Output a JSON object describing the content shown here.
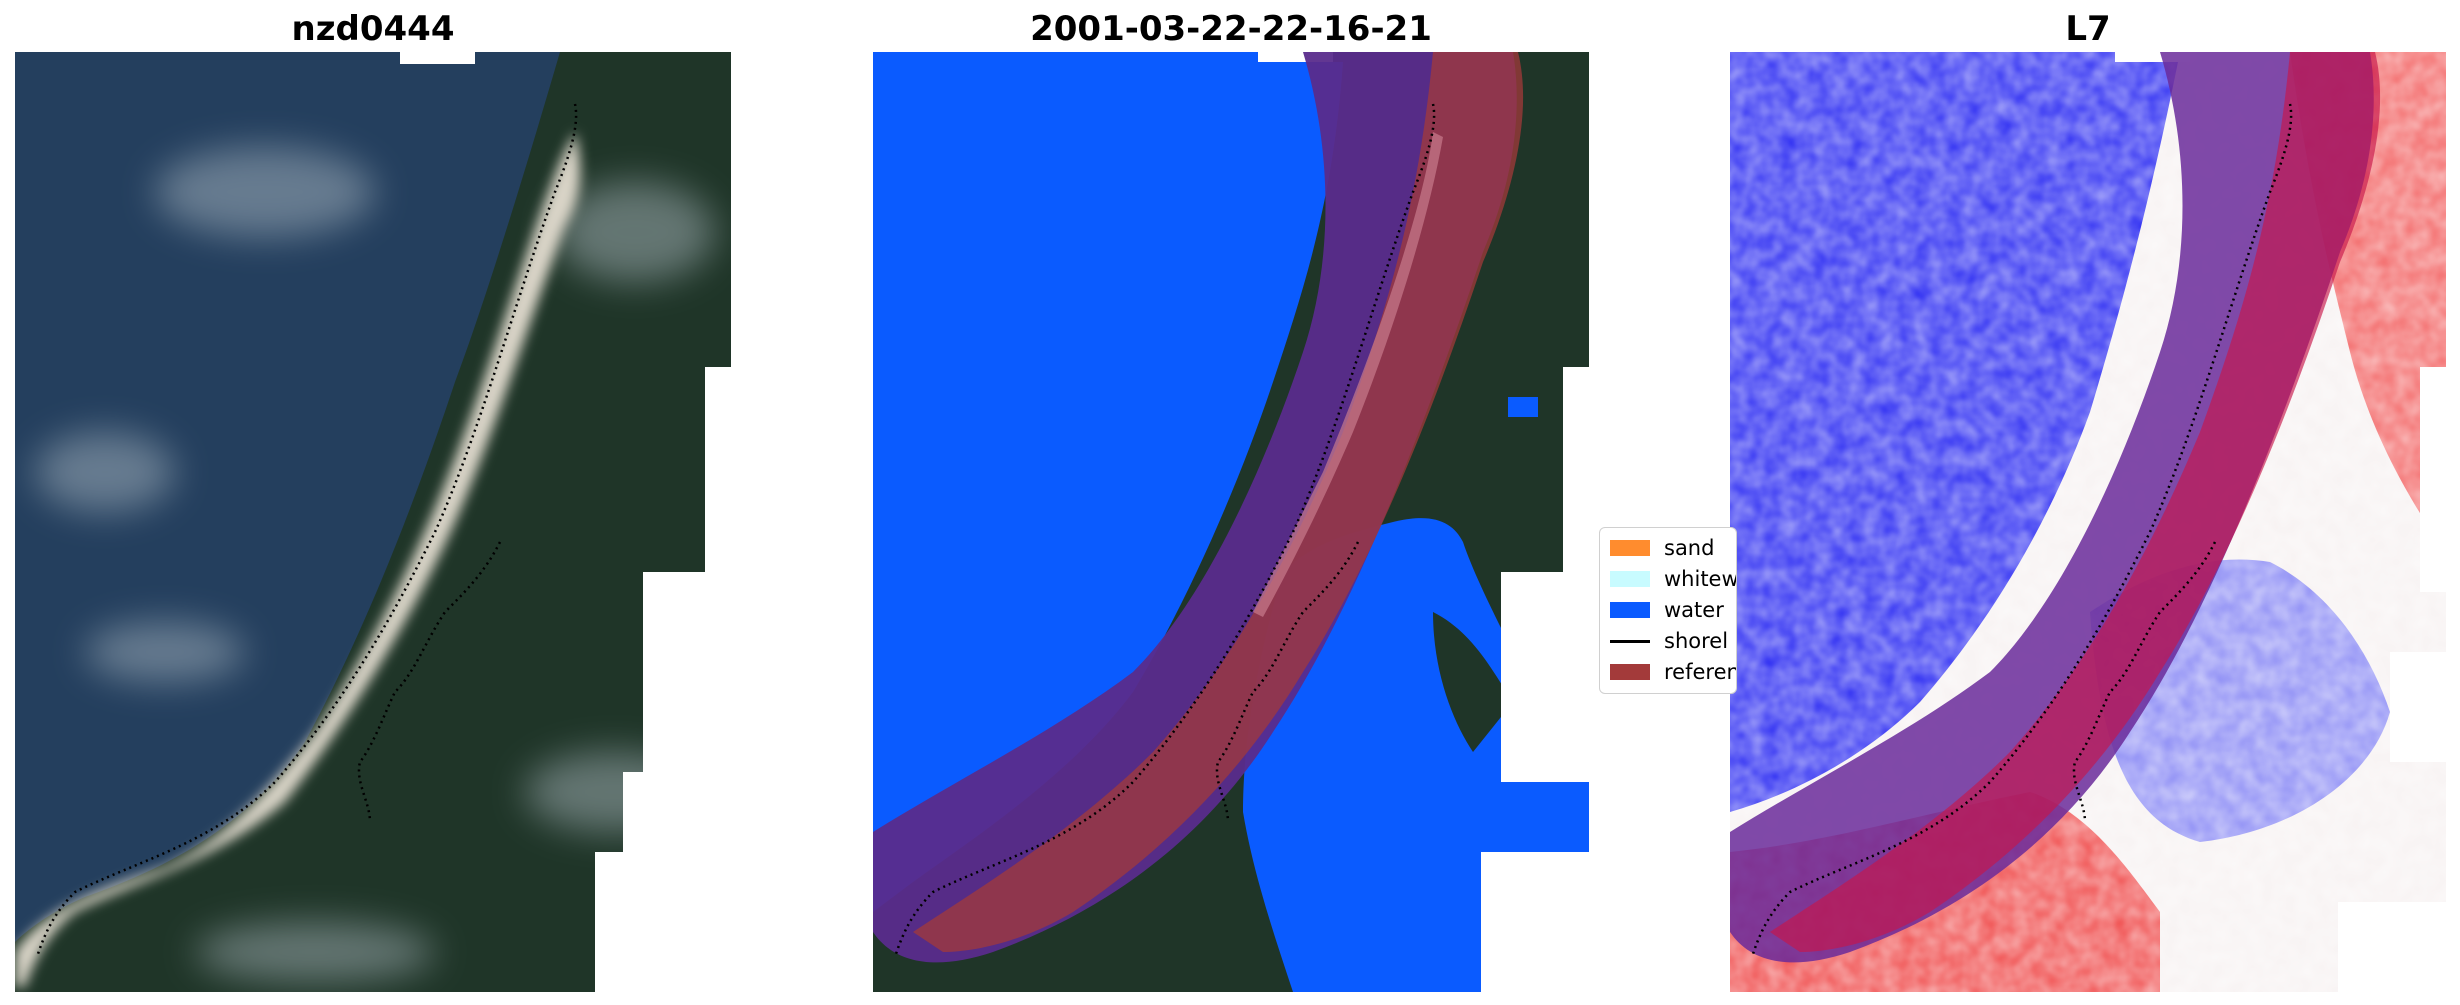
{
  "panels": [
    {
      "title": "nzd0444"
    },
    {
      "title": "2001-03-22-22-16-21"
    },
    {
      "title": "L7"
    }
  ],
  "legend": {
    "items": [
      {
        "label": "sand",
        "color": "#ff8c2e",
        "kind": "patch"
      },
      {
        "label": "whitew",
        "color": "#c8fbff",
        "kind": "patch"
      },
      {
        "label": "water",
        "color": "#0a5bff",
        "kind": "patch"
      },
      {
        "label": "shorel",
        "color": "#000000",
        "kind": "line"
      },
      {
        "label": "referen",
        "color": "#a33a3a",
        "kind": "patch"
      }
    ]
  },
  "colors": {
    "ocean": "#23415f",
    "forest": "#1d3327",
    "beach": "#d8d3c6",
    "water_class": "#0a5bff",
    "buffer_purple": "#5a2c8c",
    "reference_red": "#a33a3a",
    "index_blue": "#2c2cf0",
    "index_red": "#f03030"
  }
}
